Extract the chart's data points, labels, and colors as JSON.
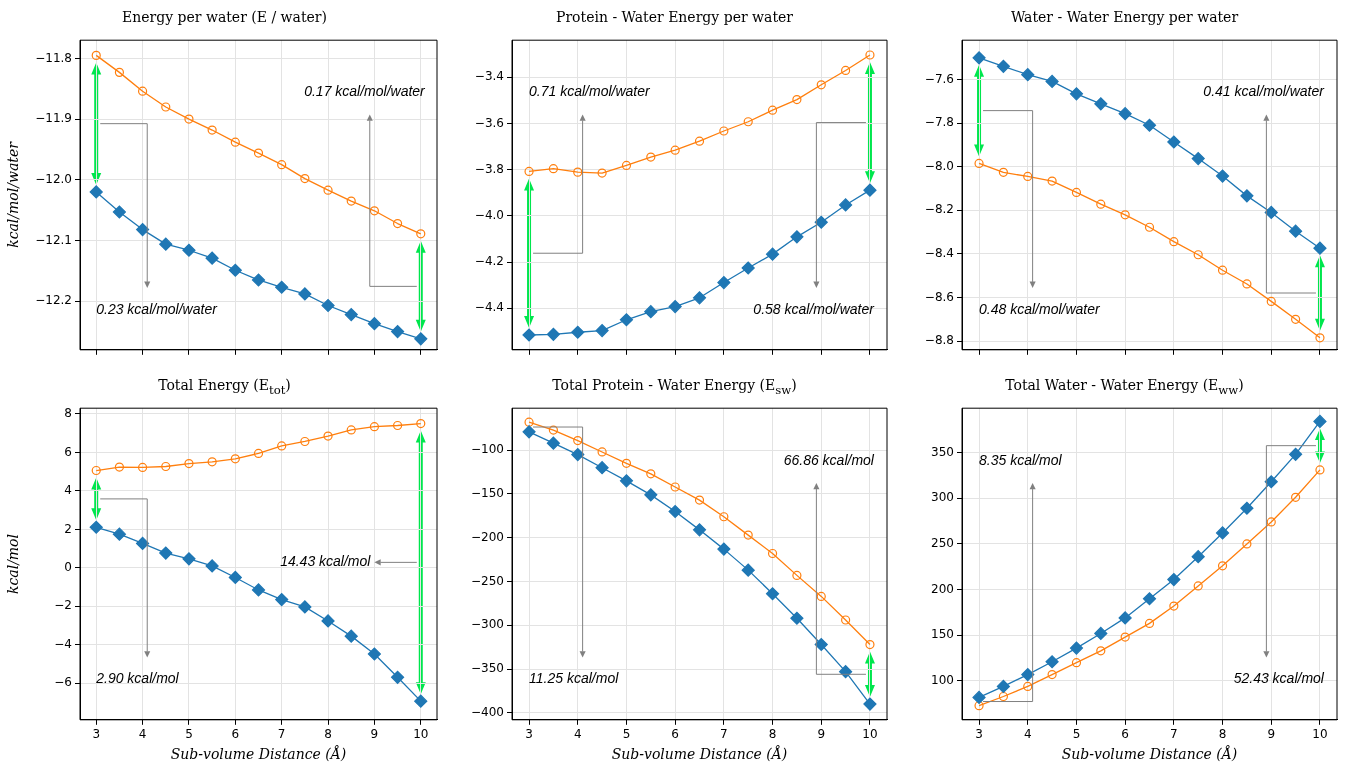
{
  "chart_data": [
    {
      "type": "line",
      "title": "Energy per water (E / water)",
      "ylabel": "kcal/mol/water",
      "x": [
        3,
        3.5,
        4,
        4.5,
        5,
        5.5,
        6,
        6.5,
        7,
        7.5,
        8,
        8.5,
        9,
        9.5,
        10
      ],
      "series": [
        {
          "color": "#1f77b4",
          "marker": "diamond",
          "values": [
            -12.02,
            -12.053,
            -12.082,
            -12.106,
            -12.116,
            -12.129,
            -12.149,
            -12.165,
            -12.177,
            -12.188,
            -12.207,
            -12.222,
            -12.237,
            -12.25,
            -12.262
          ]
        },
        {
          "color": "#ff7f0e",
          "marker": "circle",
          "values": [
            -11.795,
            -11.823,
            -11.854,
            -11.88,
            -11.9,
            -11.918,
            -11.938,
            -11.956,
            -11.975,
            -11.998,
            -12.017,
            -12.035,
            -12.051,
            -12.072,
            -12.089
          ]
        }
      ],
      "xlim": [
        2.65,
        10.35
      ],
      "xticks": [
        3,
        4,
        5,
        6,
        7,
        8,
        9,
        10
      ],
      "ylim": [
        -12.28,
        -11.77
      ],
      "yticks": [
        -12.2,
        -12.1,
        {
          "value": -12,
          "label": "−12.0"
        },
        -11.9,
        -11.8
      ],
      "grid": true,
      "tick_labels": "y",
      "annotations": [
        "0.23 kcal/mol/water",
        "0.17 kcal/mol/water"
      ]
    },
    {
      "type": "line",
      "title": "Protein - Water Energy per water",
      "x": [
        3,
        3.5,
        4,
        4.5,
        5,
        5.5,
        6,
        6.5,
        7,
        7.5,
        8,
        8.5,
        9,
        9.5,
        10
      ],
      "series": [
        {
          "color": "#1f77b4",
          "marker": "diamond",
          "values": [
            -4.516,
            -4.513,
            -4.504,
            -4.497,
            -4.45,
            -4.415,
            -4.393,
            -4.355,
            -4.289,
            -4.226,
            -4.166,
            -4.091,
            -4.028,
            -3.953,
            -3.889
          ]
        },
        {
          "color": "#ff7f0e",
          "marker": "circle",
          "values": [
            -3.808,
            -3.796,
            -3.811,
            -3.815,
            -3.782,
            -3.746,
            -3.716,
            -3.677,
            -3.633,
            -3.593,
            -3.543,
            -3.497,
            -3.433,
            -3.371,
            -3.304
          ]
        }
      ],
      "xlim": [
        2.65,
        10.35
      ],
      "xticks": [
        3,
        4,
        5,
        6,
        7,
        8,
        9,
        10
      ],
      "ylim": [
        -4.58,
        -3.24
      ],
      "yticks": [
        -4.4,
        -4.2,
        {
          "value": -4,
          "label": "−4.0"
        },
        -3.8,
        -3.6,
        -3.4
      ],
      "grid": true,
      "tick_labels": "y",
      "annotations": [
        "0.71 kcal/mol/water",
        "0.58 kcal/mol/water"
      ]
    },
    {
      "type": "line",
      "title": "Water - Water Energy per water",
      "x": [
        3,
        3.5,
        4,
        4.5,
        5,
        5.5,
        6,
        6.5,
        7,
        7.5,
        8,
        8.5,
        9,
        9.5,
        10
      ],
      "series": [
        {
          "color": "#1f77b4",
          "marker": "diamond",
          "values": [
            -7.501,
            -7.54,
            -7.578,
            -7.609,
            -7.666,
            -7.712,
            -7.757,
            -7.81,
            -7.887,
            -7.963,
            -8.043,
            -8.134,
            -8.21,
            -8.296,
            -8.374
          ]
        },
        {
          "color": "#ff7f0e",
          "marker": "circle",
          "values": [
            -7.985,
            -8.026,
            -8.045,
            -8.066,
            -8.118,
            -8.172,
            -8.221,
            -8.278,
            -8.344,
            -8.404,
            -8.475,
            -8.538,
            -8.618,
            -8.7,
            -8.785
          ]
        }
      ],
      "xlim": [
        2.65,
        10.35
      ],
      "xticks": [
        3,
        4,
        5,
        6,
        7,
        8,
        9,
        10
      ],
      "ylim": [
        -8.84,
        -7.42
      ],
      "yticks": [
        -8.8,
        -8.6,
        -8.4,
        -8.2,
        {
          "value": -8,
          "label": "−8.0"
        },
        -7.8,
        -7.6
      ],
      "grid": true,
      "tick_labels": "y",
      "annotations": [
        "0.48 kcal/mol/water",
        "0.41 kcal/mol/water"
      ]
    },
    {
      "type": "line",
      "title": "Total Energy (E$_{tot}$)",
      "xlabel": "Sub-volume Distance (Å)",
      "ylabel": "kcal/mol",
      "x": [
        3,
        3.5,
        4,
        4.5,
        5,
        5.5,
        6,
        6.5,
        7,
        7.5,
        8,
        8.5,
        9,
        9.5,
        10
      ],
      "series": [
        {
          "color": "#1f77b4",
          "marker": "diamond",
          "values": [
            2.11,
            1.75,
            1.27,
            0.77,
            0.47,
            0.1,
            -0.5,
            -1.15,
            -1.65,
            -2.03,
            -2.76,
            -3.55,
            -4.48,
            -5.69,
            -6.93
          ]
        },
        {
          "color": "#ff7f0e",
          "marker": "circle",
          "values": [
            5.06,
            5.24,
            5.22,
            5.27,
            5.42,
            5.51,
            5.67,
            5.95,
            6.34,
            6.57,
            6.85,
            7.17,
            7.34,
            7.4,
            7.5
          ]
        }
      ],
      "xlim": [
        2.65,
        10.35
      ],
      "xticks": [
        3,
        4,
        5,
        6,
        7,
        8,
        9,
        10
      ],
      "ylim": [
        -7.9,
        8.3
      ],
      "yticks": [
        -6,
        -4,
        -2,
        0,
        2,
        4,
        6,
        8
      ],
      "grid": true,
      "annotations": [
        "2.90 kcal/mol",
        "14.43 kcal/mol"
      ]
    },
    {
      "type": "line",
      "title": "Total Protein - Water Energy (E$_{sw}$)",
      "xlabel": "Sub-volume Distance (Å)",
      "x": [
        3,
        3.5,
        4,
        4.5,
        5,
        5.5,
        6,
        6.5,
        7,
        7.5,
        8,
        8.5,
        9,
        9.5,
        10
      ],
      "series": [
        {
          "color": "#1f77b4",
          "marker": "diamond",
          "values": [
            -79,
            -92,
            -105,
            -120,
            -135,
            -151,
            -170,
            -191,
            -213,
            -237,
            -264,
            -292,
            -322,
            -353,
            -390
          ]
        },
        {
          "color": "#ff7f0e",
          "marker": "circle",
          "values": [
            -68,
            -77,
            -89,
            -102,
            -115,
            -127,
            -142,
            -157,
            -176,
            -197,
            -218,
            -243,
            -267,
            -294,
            -322
          ]
        }
      ],
      "xlim": [
        2.65,
        10.35
      ],
      "xticks": [
        3,
        4,
        5,
        6,
        7,
        8,
        9,
        10
      ],
      "ylim": [
        -408,
        -52
      ],
      "yticks": [
        -400,
        -350,
        -300,
        -250,
        -200,
        -150,
        -100
      ],
      "grid": true,
      "annotations": [
        "11.25 kcal/mol",
        "66.86 kcal/mol"
      ]
    },
    {
      "type": "line",
      "title": "Total Water - Water Energy (E$_{ww}$)",
      "xlabel": "Sub-volume Distance (Å)",
      "x": [
        3,
        3.5,
        4,
        4.5,
        5,
        5.5,
        6,
        6.5,
        7,
        7.5,
        8,
        8.5,
        9,
        9.5,
        10
      ],
      "series": [
        {
          "color": "#1f77b4",
          "marker": "diamond",
          "values": [
            82,
            94,
            107,
            121,
            136,
            152,
            169,
            190,
            211,
            236,
            262,
            289,
            318,
            348,
            384
          ]
        },
        {
          "color": "#ff7f0e",
          "marker": "circle",
          "values": [
            73,
            83,
            94,
            107,
            120,
            133,
            148,
            163,
            182,
            204,
            226,
            250,
            274,
            301,
            331
          ]
        }
      ],
      "xlim": [
        2.65,
        10.35
      ],
      "xticks": [
        3,
        4,
        5,
        6,
        7,
        8,
        9,
        10
      ],
      "ylim": [
        57.5,
        398.5
      ],
      "yticks": [
        100,
        150,
        200,
        250,
        300,
        350
      ],
      "grid": true,
      "annotations": [
        "8.35 kcal/mol",
        "52.43 kcal/mol"
      ]
    }
  ]
}
